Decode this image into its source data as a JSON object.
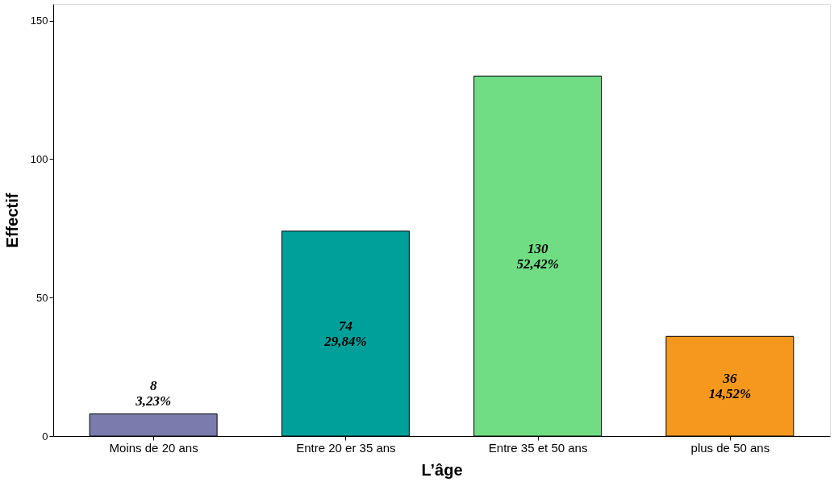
{
  "chart_data": {
    "type": "bar",
    "xlabel": "L’âge",
    "ylabel": "Effectif",
    "categories": [
      "Moins de 20 ans",
      "Entre 20 er 35 ans",
      "Entre 35 et 50 ans",
      "plus de 50 ans"
    ],
    "values": [
      8,
      74,
      130,
      36
    ],
    "colors": [
      "#7b7bae",
      "#00a09a",
      "#70dd84",
      "#f7981e"
    ],
    "value_labels": [
      "8\n3,23%",
      "74\n29,84%",
      "130\n52,42%",
      "36\n14,52%"
    ],
    "ylim": [
      0,
      156
    ],
    "yticks": [
      0,
      50,
      100,
      150
    ],
    "grid": false
  }
}
